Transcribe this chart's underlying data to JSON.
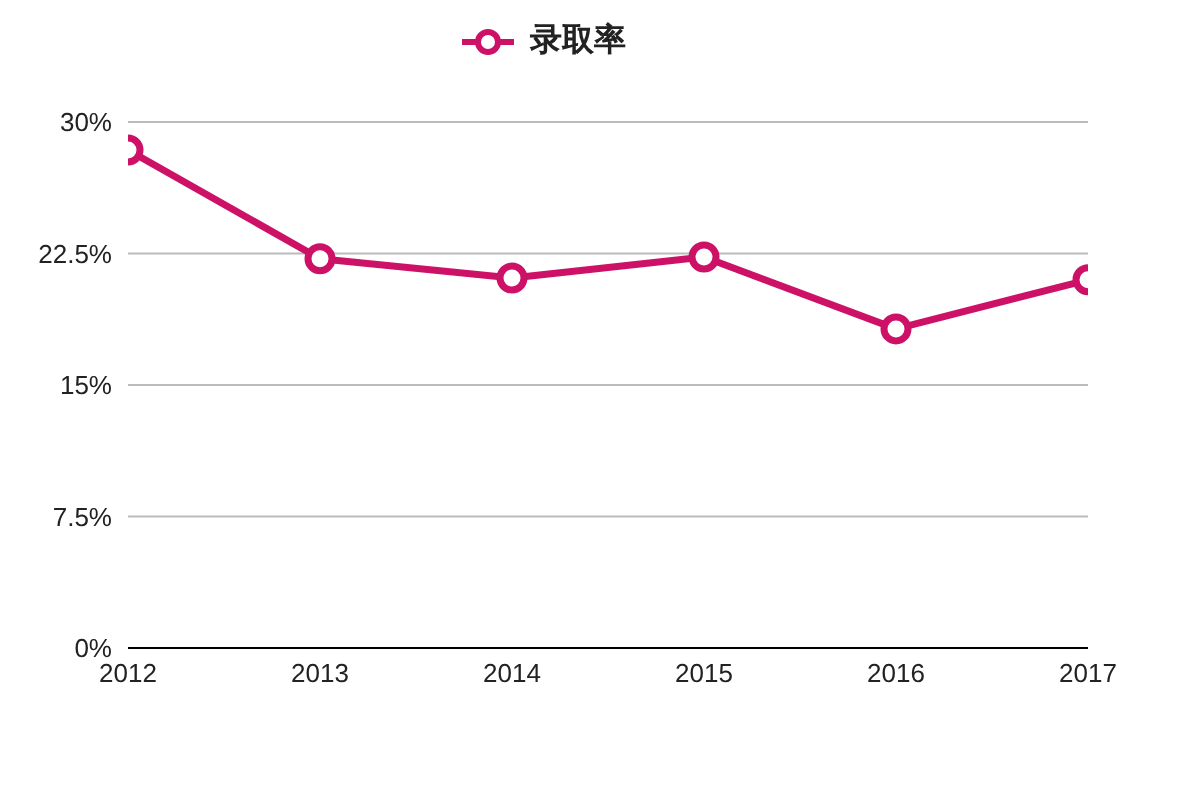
{
  "chart_data": {
    "type": "line",
    "categories": [
      "2012",
      "2013",
      "2014",
      "2015",
      "2016",
      "2017"
    ],
    "series": [
      {
        "name": "录取率",
        "color": "#cc1166",
        "values": [
          28.4,
          22.2,
          21.1,
          22.3,
          18.2,
          21.0
        ]
      }
    ],
    "ylim": [
      0,
      30
    ],
    "yticks": [
      {
        "value": 0,
        "label": "0%"
      },
      {
        "value": 7.5,
        "label": "7.5%"
      },
      {
        "value": 15,
        "label": "15%"
      },
      {
        "value": 22.5,
        "label": "22.5%"
      },
      {
        "value": 30,
        "label": "30%"
      }
    ],
    "grid": "y",
    "legend": "top",
    "marker": "circle",
    "line_style": "solid"
  }
}
